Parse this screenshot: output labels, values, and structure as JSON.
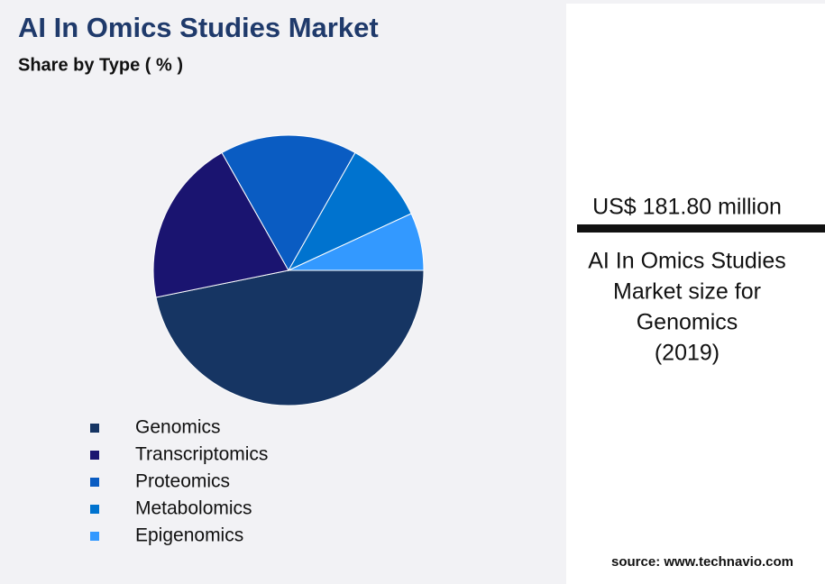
{
  "chart_data": {
    "type": "pie",
    "title": "AI In Omics Studies Market",
    "subtitle": "Share by Type ( % )",
    "categories": [
      "Genomics",
      "Transcriptomics",
      "Proteomics",
      "Metabolomics",
      "Epigenomics"
    ],
    "values": [
      46.8,
      20.0,
      16.4,
      9.9,
      6.9
    ],
    "colors": [
      "#163563",
      "#1a1470",
      "#0a5cc2",
      "#0073cf",
      "#3399ff"
    ]
  },
  "side_panel": {
    "headline": "US$ 181.80 million",
    "description_lines": [
      "AI In Omics Studies",
      "Market size for",
      "Genomics",
      "(2019)"
    ],
    "source": "source: www.technavio.com"
  }
}
